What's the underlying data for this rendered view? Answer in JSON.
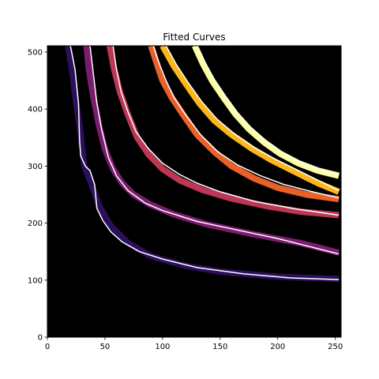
{
  "chart_data": {
    "type": "line",
    "title": "Fitted Curves",
    "xlabel": "",
    "ylabel": "",
    "xlim": [
      0,
      255
    ],
    "ylim": [
      0,
      511
    ],
    "xticks": [
      0,
      50,
      100,
      150,
      200,
      250
    ],
    "yticks": [
      0,
      100,
      200,
      300,
      400,
      500
    ],
    "background_color": "#000000",
    "fit_line_color": "#ffffff",
    "grid": false,
    "legend": "none",
    "series": [
      {
        "band_color": "#2c0f5a",
        "band": [
          [
            18,
            511
          ],
          [
            22,
            460
          ],
          [
            25,
            410
          ],
          [
            28,
            370
          ],
          [
            30,
            335
          ],
          [
            32,
            300
          ],
          [
            38,
            270
          ],
          [
            45,
            230
          ],
          [
            55,
            195
          ],
          [
            70,
            165
          ],
          [
            90,
            142
          ],
          [
            120,
            125
          ],
          [
            150,
            115
          ],
          [
            200,
            106
          ],
          [
            253,
            102
          ]
        ],
        "fit": [
          [
            20,
            511
          ],
          [
            24,
            470
          ],
          [
            27,
            410
          ],
          [
            28,
            345
          ],
          [
            29,
            318
          ],
          [
            33,
            300
          ],
          [
            37,
            292
          ],
          [
            41,
            268
          ],
          [
            43,
            226
          ],
          [
            48,
            205
          ],
          [
            55,
            185
          ],
          [
            65,
            167
          ],
          [
            80,
            150
          ],
          [
            100,
            137
          ],
          [
            130,
            122
          ],
          [
            170,
            111
          ],
          [
            210,
            104
          ],
          [
            253,
            101
          ]
        ]
      },
      {
        "band_color": "#7a1d6e",
        "band": [
          [
            34,
            511
          ],
          [
            36,
            470
          ],
          [
            40,
            420
          ],
          [
            45,
            370
          ],
          [
            50,
            330
          ],
          [
            57,
            295
          ],
          [
            65,
            270
          ],
          [
            75,
            250
          ],
          [
            90,
            232
          ],
          [
            110,
            215
          ],
          [
            140,
            197
          ],
          [
            180,
            180
          ],
          [
            220,
            165
          ],
          [
            253,
            148
          ]
        ],
        "fit": [
          [
            37,
            511
          ],
          [
            40,
            460
          ],
          [
            43,
            410
          ],
          [
            47,
            365
          ],
          [
            53,
            315
          ],
          [
            60,
            283
          ],
          [
            70,
            257
          ],
          [
            85,
            235
          ],
          [
            100,
            222
          ],
          [
            130,
            203
          ],
          [
            160,
            190
          ],
          [
            200,
            173
          ],
          [
            253,
            146
          ]
        ]
      },
      {
        "band_color": "#bb3754",
        "band": [
          [
            54,
            511
          ],
          [
            58,
            470
          ],
          [
            63,
            430
          ],
          [
            70,
            390
          ],
          [
            78,
            350
          ],
          [
            88,
            320
          ],
          [
            100,
            295
          ],
          [
            115,
            275
          ],
          [
            135,
            258
          ],
          [
            160,
            243
          ],
          [
            190,
            230
          ],
          [
            220,
            220
          ],
          [
            253,
            214
          ]
        ],
        "fit": [
          [
            57,
            511
          ],
          [
            60,
            470
          ],
          [
            64,
            430
          ],
          [
            70,
            395
          ],
          [
            77,
            360
          ],
          [
            88,
            330
          ],
          [
            100,
            305
          ],
          [
            115,
            285
          ],
          [
            130,
            270
          ],
          [
            150,
            255
          ],
          [
            180,
            238
          ],
          [
            215,
            225
          ],
          [
            253,
            214
          ]
        ]
      },
      {
        "band_color": "#e8602a",
        "band": [
          [
            90,
            511
          ],
          [
            95,
            480
          ],
          [
            100,
            450
          ],
          [
            108,
            420
          ],
          [
            118,
            390
          ],
          [
            130,
            355
          ],
          [
            145,
            325
          ],
          [
            160,
            300
          ],
          [
            180,
            278
          ],
          [
            200,
            262
          ],
          [
            225,
            250
          ],
          [
            253,
            242
          ]
        ],
        "fit": [
          [
            92,
            511
          ],
          [
            97,
            480
          ],
          [
            103,
            450
          ],
          [
            110,
            420
          ],
          [
            120,
            390
          ],
          [
            133,
            355
          ],
          [
            148,
            325
          ],
          [
            165,
            302
          ],
          [
            185,
            283
          ],
          [
            205,
            268
          ],
          [
            230,
            255
          ],
          [
            253,
            244
          ]
        ]
      },
      {
        "band_color": "#fbb61a",
        "band": [
          [
            100,
            511
          ],
          [
            110,
            475
          ],
          [
            120,
            445
          ],
          [
            132,
            410
          ],
          [
            145,
            380
          ],
          [
            160,
            355
          ],
          [
            178,
            330
          ],
          [
            195,
            310
          ],
          [
            215,
            290
          ],
          [
            235,
            270
          ],
          [
            253,
            255
          ]
        ],
        "fit": [
          [
            103,
            511
          ],
          [
            112,
            478
          ],
          [
            122,
            447
          ],
          [
            134,
            413
          ],
          [
            147,
            383
          ],
          [
            162,
            357
          ],
          [
            180,
            332
          ],
          [
            198,
            312
          ],
          [
            218,
            292
          ],
          [
            238,
            272
          ],
          [
            253,
            257
          ]
        ]
      },
      {
        "band_color": "#fcffa4",
        "band": [
          [
            128,
            511
          ],
          [
            135,
            480
          ],
          [
            143,
            450
          ],
          [
            153,
            420
          ],
          [
            163,
            392
          ],
          [
            175,
            365
          ],
          [
            188,
            342
          ],
          [
            202,
            322
          ],
          [
            218,
            305
          ],
          [
            235,
            292
          ],
          [
            253,
            283
          ]
        ],
        "fit": [
          [
            130,
            511
          ],
          [
            137,
            481
          ],
          [
            145,
            451
          ],
          [
            155,
            421
          ],
          [
            165,
            393
          ],
          [
            177,
            366
          ],
          [
            190,
            343
          ],
          [
            204,
            323
          ],
          [
            220,
            306
          ],
          [
            237,
            293
          ],
          [
            253,
            285
          ]
        ]
      }
    ]
  }
}
